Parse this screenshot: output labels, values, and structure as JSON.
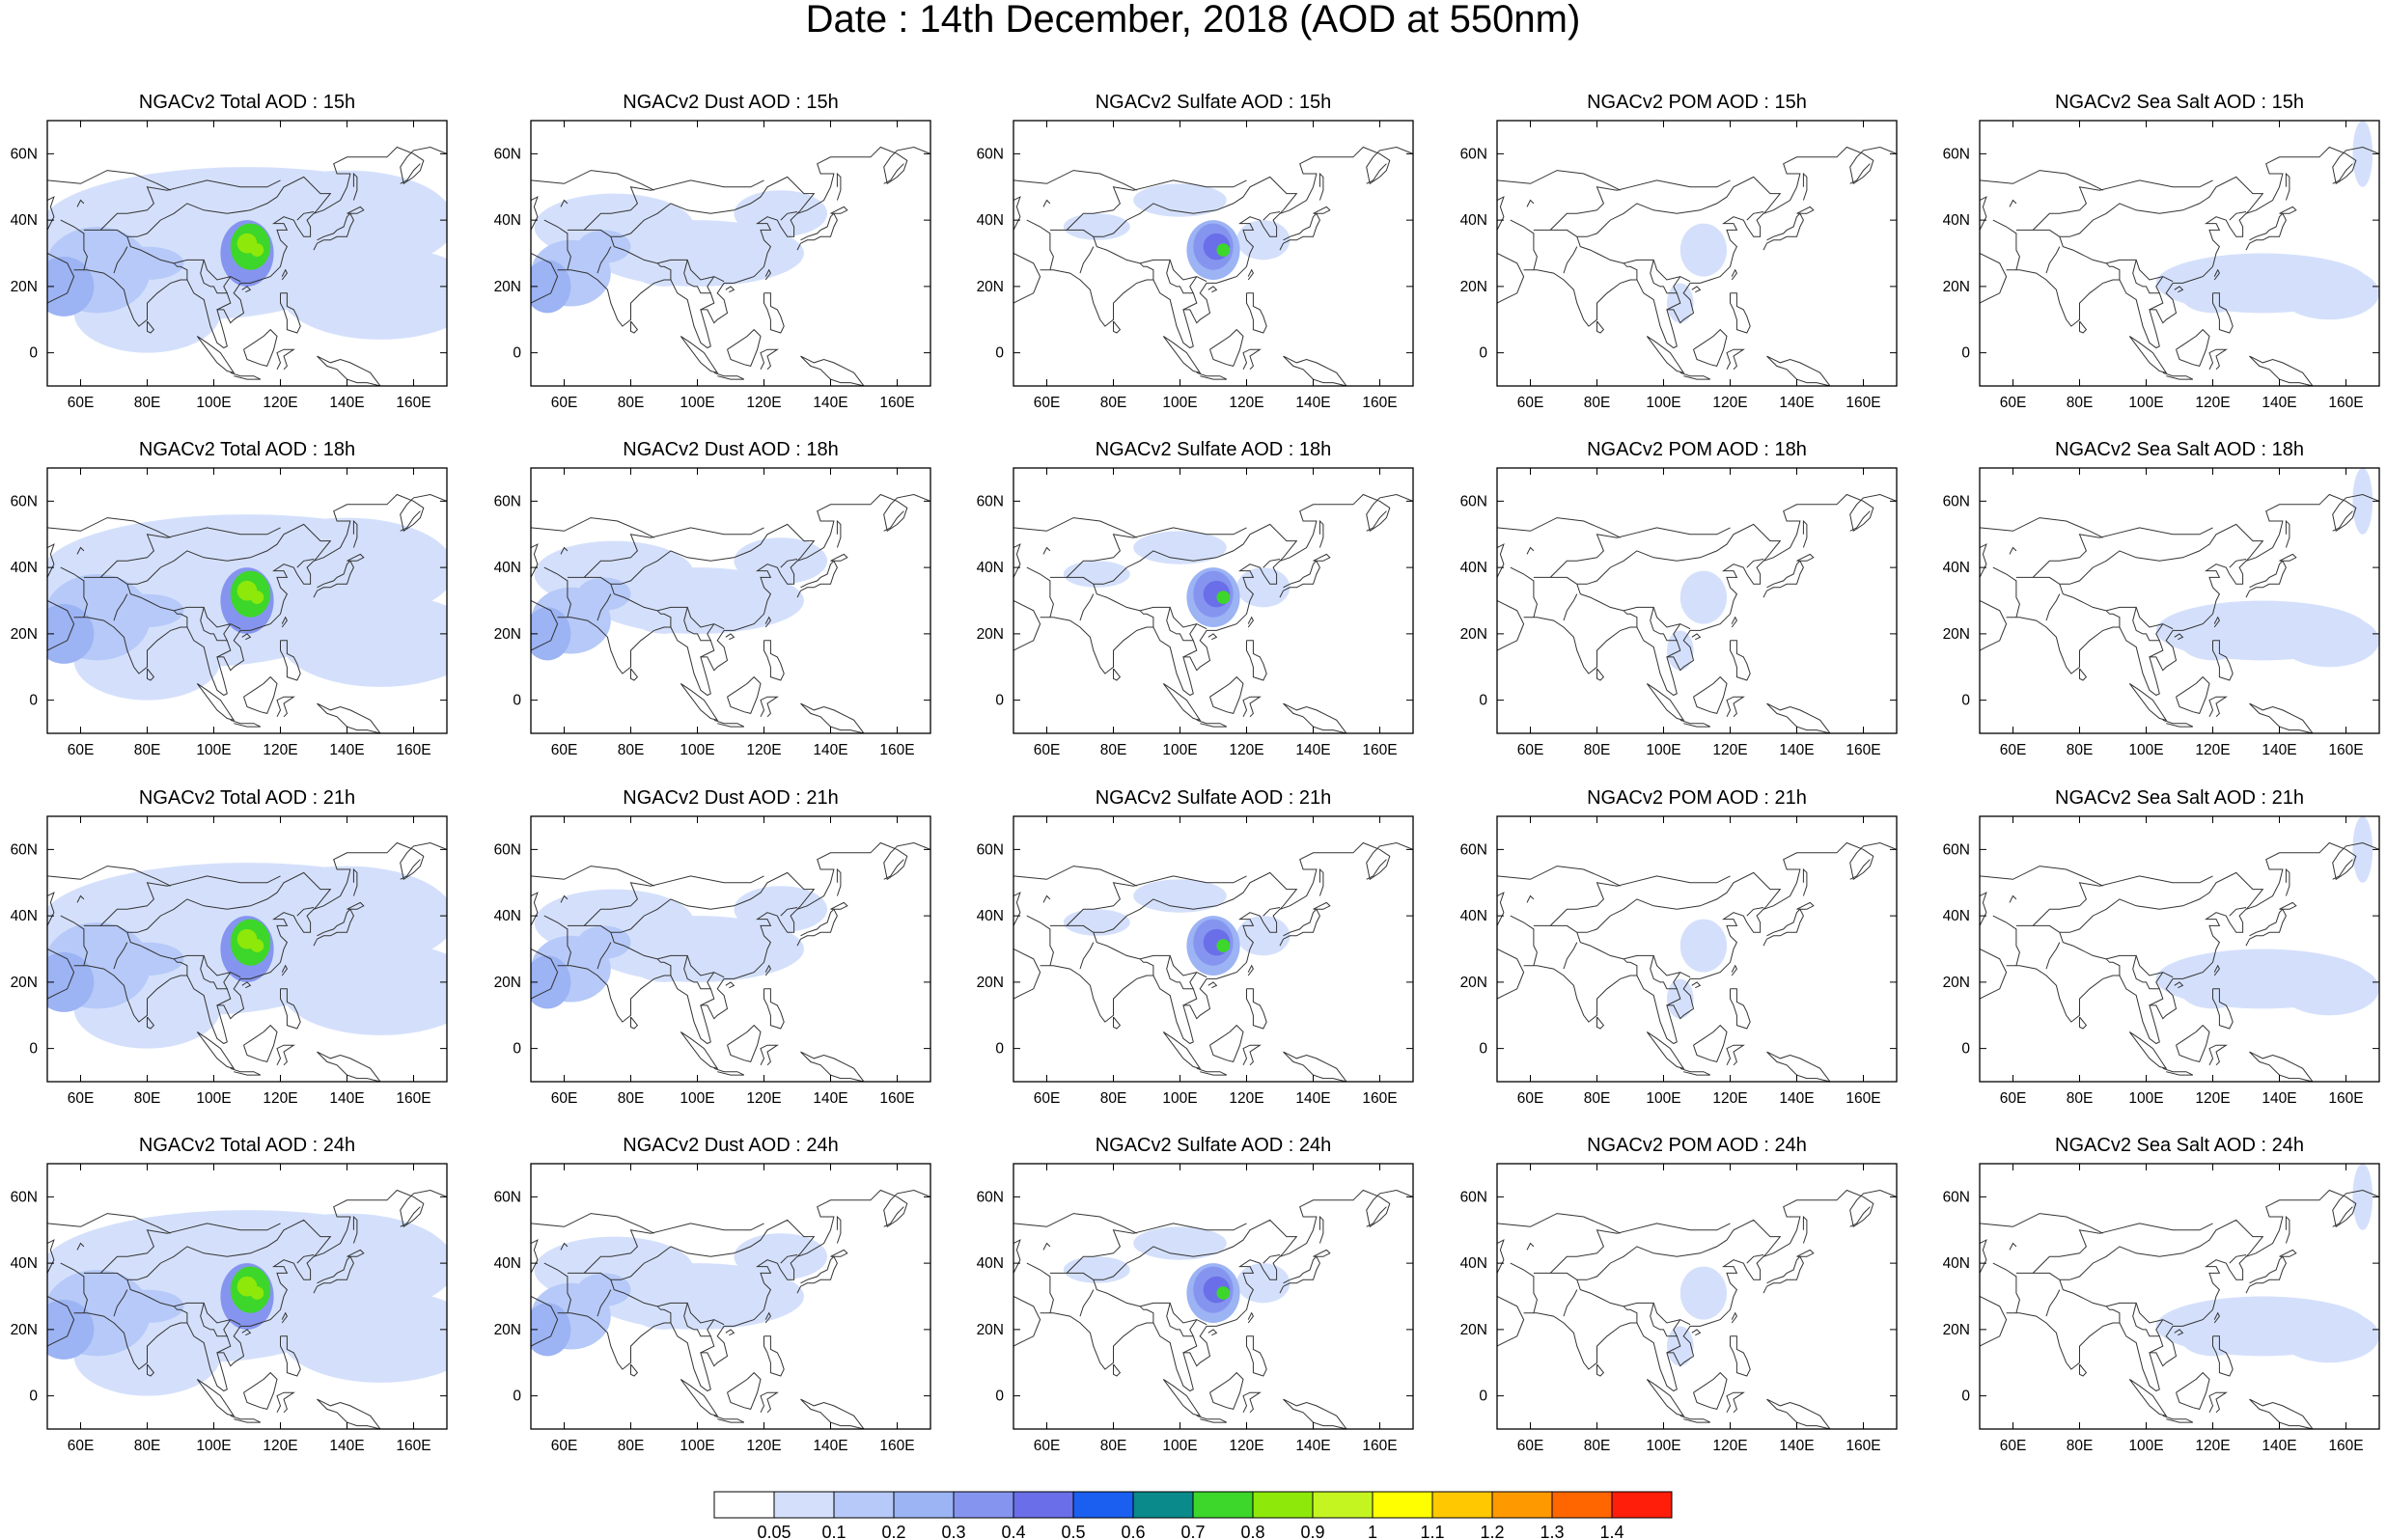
{
  "figure": {
    "title": "Date : 14th December, 2018 (AOD at 550nm)"
  },
  "panels": [
    {
      "row": 0,
      "col": 0,
      "title": "NGACv2 Total AOD : 15h",
      "species": "total"
    },
    {
      "row": 0,
      "col": 1,
      "title": "NGACv2 Dust AOD : 15h",
      "species": "dust"
    },
    {
      "row": 0,
      "col": 2,
      "title": "NGACv2 Sulfate AOD : 15h",
      "species": "sulfate"
    },
    {
      "row": 0,
      "col": 3,
      "title": "NGACv2 POM AOD : 15h",
      "species": "pom"
    },
    {
      "row": 0,
      "col": 4,
      "title": "NGACv2 Sea Salt AOD : 15h",
      "species": "seasalt"
    },
    {
      "row": 1,
      "col": 0,
      "title": "NGACv2 Total AOD : 18h",
      "species": "total"
    },
    {
      "row": 1,
      "col": 1,
      "title": "NGACv2 Dust AOD : 18h",
      "species": "dust"
    },
    {
      "row": 1,
      "col": 2,
      "title": "NGACv2 Sulfate AOD : 18h",
      "species": "sulfate"
    },
    {
      "row": 1,
      "col": 3,
      "title": "NGACv2 POM AOD : 18h",
      "species": "pom"
    },
    {
      "row": 1,
      "col": 4,
      "title": "NGACv2 Sea Salt AOD : 18h",
      "species": "seasalt"
    },
    {
      "row": 2,
      "col": 0,
      "title": "NGACv2 Total AOD : 21h",
      "species": "total"
    },
    {
      "row": 2,
      "col": 1,
      "title": "NGACv2 Dust AOD : 21h",
      "species": "dust"
    },
    {
      "row": 2,
      "col": 2,
      "title": "NGACv2 Sulfate AOD : 21h",
      "species": "sulfate"
    },
    {
      "row": 2,
      "col": 3,
      "title": "NGACv2 POM AOD : 21h",
      "species": "pom"
    },
    {
      "row": 2,
      "col": 4,
      "title": "NGACv2 Sea Salt AOD : 21h",
      "species": "seasalt"
    },
    {
      "row": 3,
      "col": 0,
      "title": "NGACv2 Total AOD : 24h",
      "species": "total"
    },
    {
      "row": 3,
      "col": 1,
      "title": "NGACv2 Dust AOD : 24h",
      "species": "dust"
    },
    {
      "row": 3,
      "col": 2,
      "title": "NGACv2 Sulfate AOD : 24h",
      "species": "sulfate"
    },
    {
      "row": 3,
      "col": 3,
      "title": "NGACv2 POM AOD : 24h",
      "species": "pom"
    },
    {
      "row": 3,
      "col": 4,
      "title": "NGACv2 Sea Salt  AOD : 24h",
      "species": "seasalt"
    }
  ],
  "axes": {
    "x_ticks": [
      "60E",
      "80E",
      "100E",
      "120E",
      "140E",
      "160E"
    ],
    "y_ticks": [
      "60N",
      "40N",
      "20N",
      "0"
    ]
  },
  "colorbar": {
    "labels": [
      "0.05",
      "0.1",
      "0.2",
      "0.3",
      "0.4",
      "0.5",
      "0.6",
      "0.7",
      "0.8",
      "0.9",
      "1",
      "1.1",
      "1.2",
      "1.3",
      "1.4"
    ],
    "colors": [
      "#ffffff",
      "#d4e0fb",
      "#b6c9f8",
      "#9cb3f4",
      "#8595ef",
      "#6a6ee8",
      "#1a5ff0",
      "#0a8a8a",
      "#3dd62a",
      "#8ee80a",
      "#c5f520",
      "#ffff00",
      "#ffc800",
      "#ff9900",
      "#ff6600",
      "#ff1e0a"
    ]
  },
  "chart_data": [
    {
      "type": "heatmap",
      "title": "NGACv2 Total AOD : 15h",
      "x_range_deg_E": [
        50,
        170
      ],
      "y_range_deg_N": [
        -10,
        70
      ],
      "max_region": "central-east China",
      "max_approx": 0.9
    },
    {
      "type": "heatmap",
      "title": "NGACv2 Dust AOD : 15h",
      "x_range_deg_E": [
        50,
        170
      ],
      "y_range_deg_N": [
        -10,
        70
      ],
      "max_region": "Arabian Sea / NW India",
      "max_approx": 0.3
    },
    {
      "type": "heatmap",
      "title": "NGACv2 Sulfate AOD : 15h",
      "x_range_deg_E": [
        50,
        170
      ],
      "y_range_deg_N": [
        -10,
        70
      ],
      "max_region": "central-east China",
      "max_approx": 0.8
    },
    {
      "type": "heatmap",
      "title": "NGACv2 POM AOD : 15h",
      "x_range_deg_E": [
        50,
        170
      ],
      "y_range_deg_N": [
        -10,
        70
      ],
      "max_region": "east China",
      "max_approx": 0.1
    },
    {
      "type": "heatmap",
      "title": "NGACv2 Sea Salt AOD : 15h",
      "x_range_deg_E": [
        50,
        170
      ],
      "y_range_deg_N": [
        -10,
        70
      ],
      "max_region": "western Pacific",
      "max_approx": 0.1
    },
    {
      "type": "heatmap",
      "title": "NGACv2 Total AOD : 18h",
      "x_range_deg_E": [
        50,
        170
      ],
      "y_range_deg_N": [
        -10,
        70
      ],
      "max_region": "central-east China",
      "max_approx": 0.9
    },
    {
      "type": "heatmap",
      "title": "NGACv2 Dust AOD : 18h",
      "x_range_deg_E": [
        50,
        170
      ],
      "y_range_deg_N": [
        -10,
        70
      ],
      "max_region": "Arabian Sea / NW India",
      "max_approx": 0.3
    },
    {
      "type": "heatmap",
      "title": "NGACv2 Sulfate AOD : 18h",
      "x_range_deg_E": [
        50,
        170
      ],
      "y_range_deg_N": [
        -10,
        70
      ],
      "max_region": "central-east China",
      "max_approx": 0.8
    },
    {
      "type": "heatmap",
      "title": "NGACv2 POM AOD : 18h",
      "x_range_deg_E": [
        50,
        170
      ],
      "y_range_deg_N": [
        -10,
        70
      ],
      "max_region": "east China",
      "max_approx": 0.1
    },
    {
      "type": "heatmap",
      "title": "NGACv2 Sea Salt AOD : 18h",
      "x_range_deg_E": [
        50,
        170
      ],
      "y_range_deg_N": [
        -10,
        70
      ],
      "max_region": "western Pacific",
      "max_approx": 0.1
    },
    {
      "type": "heatmap",
      "title": "NGACv2 Total AOD : 21h",
      "x_range_deg_E": [
        50,
        170
      ],
      "y_range_deg_N": [
        -10,
        70
      ],
      "max_region": "central-east China",
      "max_approx": 0.9
    },
    {
      "type": "heatmap",
      "title": "NGACv2 Dust AOD : 21h",
      "x_range_deg_E": [
        50,
        170
      ],
      "y_range_deg_N": [
        -10,
        70
      ],
      "max_region": "Arabian Sea / NW India",
      "max_approx": 0.3
    },
    {
      "type": "heatmap",
      "title": "NGACv2 Sulfate AOD : 21h",
      "x_range_deg_E": [
        50,
        170
      ],
      "y_range_deg_N": [
        -10,
        70
      ],
      "max_region": "central-east China",
      "max_approx": 0.8
    },
    {
      "type": "heatmap",
      "title": "NGACv2 POM AOD : 21h",
      "x_range_deg_E": [
        50,
        170
      ],
      "y_range_deg_N": [
        -10,
        70
      ],
      "max_region": "east China",
      "max_approx": 0.1
    },
    {
      "type": "heatmap",
      "title": "NGACv2 Sea Salt AOD : 21h",
      "x_range_deg_E": [
        50,
        170
      ],
      "y_range_deg_N": [
        -10,
        70
      ],
      "max_region": "western Pacific",
      "max_approx": 0.1
    },
    {
      "type": "heatmap",
      "title": "NGACv2 Total AOD : 24h",
      "x_range_deg_E": [
        50,
        170
      ],
      "y_range_deg_N": [
        -10,
        70
      ],
      "max_region": "central-east China",
      "max_approx": 0.9
    },
    {
      "type": "heatmap",
      "title": "NGACv2 Dust AOD : 24h",
      "x_range_deg_E": [
        50,
        170
      ],
      "y_range_deg_N": [
        -10,
        70
      ],
      "max_region": "Arabian Sea / NW India",
      "max_approx": 0.3
    },
    {
      "type": "heatmap",
      "title": "NGACv2 Sulfate AOD : 24h",
      "x_range_deg_E": [
        50,
        170
      ],
      "y_range_deg_N": [
        -10,
        70
      ],
      "max_region": "central-east China",
      "max_approx": 0.8
    },
    {
      "type": "heatmap",
      "title": "NGACv2 POM AOD : 24h",
      "x_range_deg_E": [
        50,
        170
      ],
      "y_range_deg_N": [
        -10,
        70
      ],
      "max_region": "east China",
      "max_approx": 0.1
    },
    {
      "type": "heatmap",
      "title": "NGACv2 Sea Salt  AOD : 24h",
      "x_range_deg_E": [
        50,
        170
      ],
      "y_range_deg_N": [
        -10,
        70
      ],
      "max_region": "western Pacific",
      "max_approx": 0.1
    }
  ]
}
